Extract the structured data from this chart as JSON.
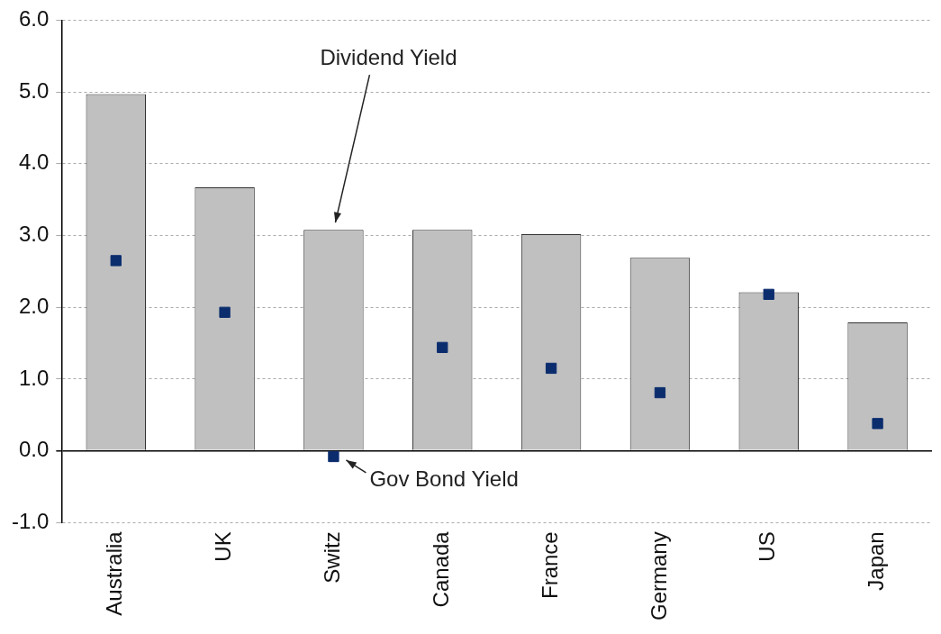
{
  "chart_data": {
    "type": "bar",
    "categories": [
      "Australia",
      "UK",
      "Switz",
      "Canada",
      "France",
      "Germany",
      "US",
      "Japan"
    ],
    "series": [
      {
        "color": "#c0c0c0",
        "values": [
          4.97,
          3.67,
          3.08,
          3.08,
          3.02,
          2.69,
          2.21,
          1.79
        ]
      },
      {
        "type": "scatter",
        "color": "#0b2d6e",
        "x": [
          "Australia",
          "UK",
          "Switz",
          "Canada",
          "France",
          "Germany",
          "US",
          "Japan"
        ],
        "values": [
          2.65,
          1.93,
          -0.08,
          1.44,
          1.15,
          0.81,
          2.18,
          0.38
        ]
      }
    ],
    "ylim": [
      -1,
      6
    ],
    "yticks": [
      {
        "value": -1,
        "label": "-1.0"
      },
      {
        "value": 0,
        "label": "0.0"
      },
      {
        "value": 1,
        "label": "1.0"
      },
      {
        "value": 2,
        "label": "2.0"
      },
      {
        "value": 3,
        "label": "3.0"
      },
      {
        "value": 4,
        "label": "4.0"
      },
      {
        "value": 5,
        "label": "5.0"
      },
      {
        "value": 6,
        "label": "6.0"
      }
    ],
    "grid": "y",
    "legend": false,
    "marker": "square",
    "annotations": [
      {
        "text": "Dividend Yield",
        "x": "Switz",
        "y": 3.08
      },
      {
        "text": "Gov Bond Yield",
        "x": "Switz",
        "y": -0.08
      }
    ]
  }
}
